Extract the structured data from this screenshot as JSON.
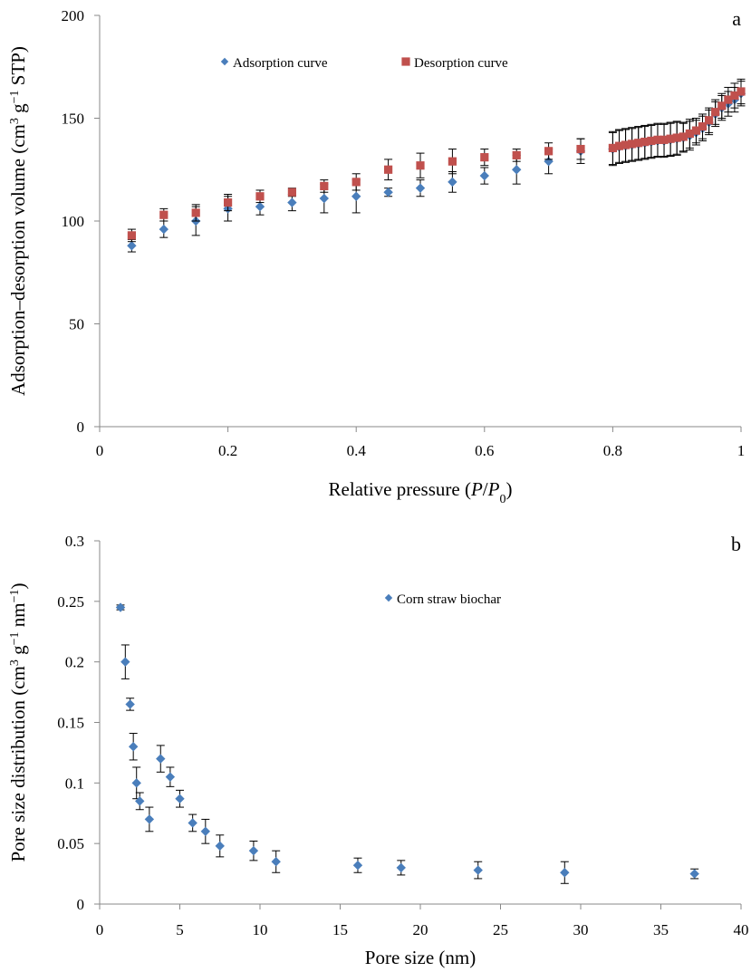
{
  "chart_data": [
    {
      "panel_label": "a",
      "type": "scatter",
      "xlabel_parts": [
        "Relative pressure (",
        "P",
        "/",
        "P",
        "0",
        ")"
      ],
      "ylabel_parts": [
        "Adsorption–desorption volume (cm",
        "3",
        " g",
        "−1",
        " STP)"
      ],
      "xlim": [
        0,
        1
      ],
      "ylim": [
        0,
        200
      ],
      "x_ticks": [
        0,
        0.2,
        0.4,
        0.6,
        0.8,
        1
      ],
      "x_tick_labels": [
        "0",
        "0.2",
        "0.4",
        "0.6",
        "0.8",
        "1"
      ],
      "y_ticks": [
        0,
        50,
        100,
        150,
        200
      ],
      "y_tick_labels": [
        "0",
        "50",
        "100",
        "150",
        "200"
      ],
      "grid": false,
      "legend_position": "top-left",
      "series": [
        {
          "name": "Adsorption curve",
          "marker": "diamond",
          "color": "#4a7ebb",
          "x": [
            0.05,
            0.1,
            0.15,
            0.2,
            0.25,
            0.3,
            0.35,
            0.4,
            0.45,
            0.5,
            0.55,
            0.6,
            0.65,
            0.7,
            0.75,
            0.8,
            0.81,
            0.82,
            0.83,
            0.84,
            0.85,
            0.86,
            0.87,
            0.88,
            0.89,
            0.9,
            0.91,
            0.92,
            0.93,
            0.94,
            0.95,
            0.96,
            0.97,
            0.98,
            0.99,
            1.0
          ],
          "y": [
            88,
            96,
            100,
            106,
            107,
            109,
            111,
            112,
            114,
            116,
            119,
            122,
            125,
            129,
            134,
            135,
            136,
            136.5,
            137,
            137.5,
            138,
            138.5,
            139,
            139,
            139.5,
            140,
            140.5,
            141.5,
            143,
            145,
            148,
            152,
            155,
            157,
            159,
            162
          ],
          "error": [
            3,
            4,
            7,
            6,
            4,
            4,
            7,
            8,
            2,
            4,
            5,
            4,
            7,
            6,
            6,
            8,
            8,
            8,
            8,
            8,
            8,
            8,
            8,
            8,
            8,
            8,
            7,
            7,
            6,
            6,
            6,
            6,
            6,
            6,
            6,
            6
          ]
        },
        {
          "name": "Desorption curve",
          "marker": "square",
          "color": "#c0504d",
          "x": [
            0.05,
            0.1,
            0.15,
            0.2,
            0.25,
            0.3,
            0.35,
            0.4,
            0.45,
            0.5,
            0.55,
            0.6,
            0.65,
            0.7,
            0.75,
            0.8,
            0.81,
            0.82,
            0.83,
            0.84,
            0.85,
            0.86,
            0.87,
            0.88,
            0.89,
            0.9,
            0.91,
            0.92,
            0.93,
            0.94,
            0.95,
            0.96,
            0.97,
            0.98,
            0.99,
            1.0
          ],
          "y": [
            93,
            103,
            104,
            109,
            112,
            114,
            117,
            119,
            125,
            127,
            129,
            131,
            132,
            134,
            135,
            135.5,
            136.5,
            137,
            137.5,
            138,
            138.5,
            139,
            139.5,
            139.5,
            140,
            140.5,
            141,
            142.5,
            144,
            146,
            149,
            153,
            156,
            159,
            161,
            163
          ],
          "error": [
            3,
            3,
            4,
            4,
            3,
            2,
            3,
            4,
            5,
            6,
            6,
            4,
            3,
            4,
            5,
            8,
            8,
            8,
            8,
            8,
            8,
            8,
            8,
            8,
            8,
            8,
            7,
            7,
            6,
            6,
            6,
            6,
            6,
            6,
            6,
            6
          ]
        }
      ]
    },
    {
      "panel_label": "b",
      "type": "scatter",
      "xlabel_parts": [
        "Pore size (nm)"
      ],
      "ylabel_parts": [
        "Pore size distribution (cm",
        "3",
        " g",
        "−1",
        " nm",
        "−1",
        ")"
      ],
      "xlim": [
        0,
        40
      ],
      "ylim": [
        0,
        0.3
      ],
      "x_ticks": [
        0,
        5,
        10,
        15,
        20,
        25,
        30,
        35,
        40
      ],
      "x_tick_labels": [
        "0",
        "5",
        "10",
        "15",
        "20",
        "25",
        "30",
        "35",
        "40"
      ],
      "y_ticks": [
        0,
        0.05,
        0.1,
        0.15,
        0.2,
        0.25,
        0.3
      ],
      "y_tick_labels": [
        "0",
        "0.05",
        "0.1",
        "0.15",
        "0.2",
        "0.25",
        "0.3"
      ],
      "grid": false,
      "legend_position": "top-center",
      "series": [
        {
          "name": "Corn straw biochar",
          "marker": "diamond",
          "color": "#4a7ebb",
          "x": [
            1.3,
            1.6,
            1.9,
            2.1,
            2.3,
            2.5,
            3.1,
            3.8,
            4.4,
            5.0,
            5.8,
            6.6,
            7.5,
            9.6,
            11.0,
            16.1,
            18.8,
            23.6,
            29.0,
            37.1
          ],
          "y": [
            0.245,
            0.2,
            0.165,
            0.13,
            0.1,
            0.085,
            0.07,
            0.12,
            0.105,
            0.087,
            0.067,
            0.06,
            0.048,
            0.044,
            0.035,
            0.032,
            0.03,
            0.028,
            0.026,
            0.025
          ],
          "error": [
            0.002,
            0.014,
            0.005,
            0.011,
            0.013,
            0.007,
            0.01,
            0.011,
            0.008,
            0.007,
            0.007,
            0.01,
            0.009,
            0.008,
            0.009,
            0.006,
            0.006,
            0.007,
            0.009,
            0.004
          ]
        }
      ]
    }
  ]
}
